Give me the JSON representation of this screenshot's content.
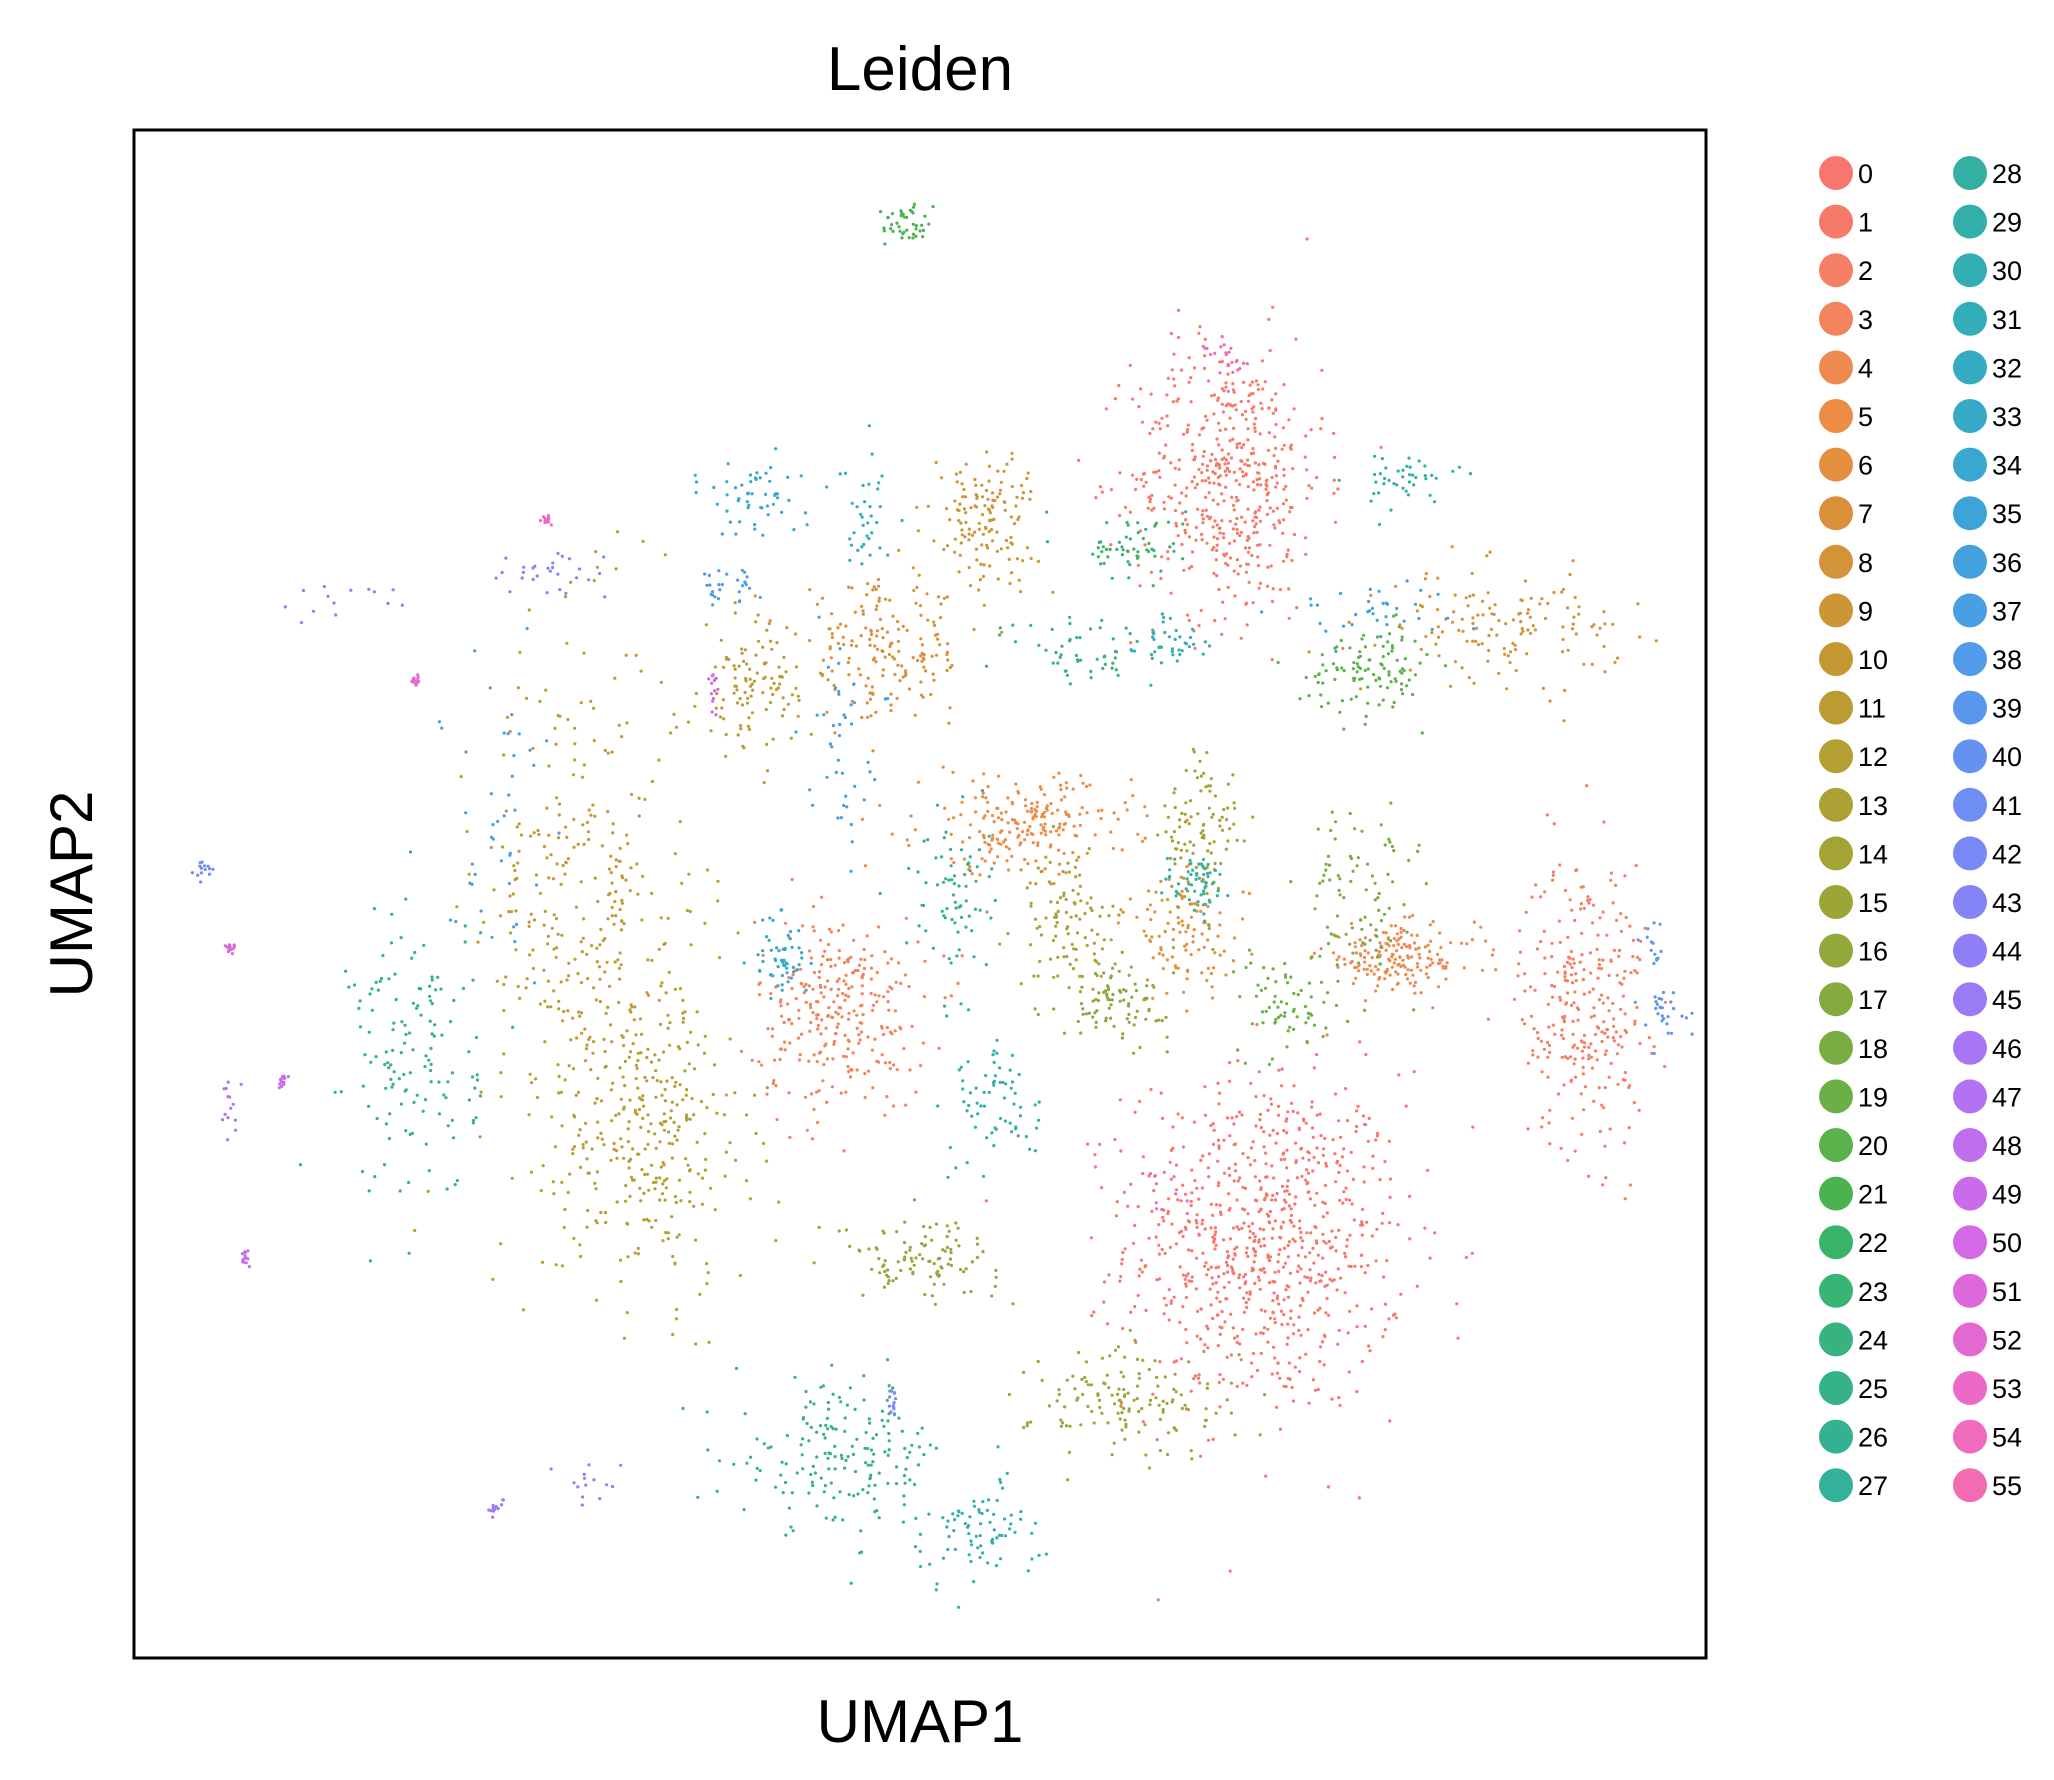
{
  "chart_data": {
    "type": "scatter",
    "title": "Leiden",
    "xlabel": "UMAP1",
    "ylabel": "UMAP2",
    "xticks": [],
    "yticks": [],
    "grid": false,
    "legend_position": "right-outside",
    "legend_columns": 2,
    "categories": [
      "0",
      "1",
      "2",
      "3",
      "4",
      "5",
      "6",
      "7",
      "8",
      "9",
      "10",
      "11",
      "12",
      "13",
      "14",
      "15",
      "16",
      "17",
      "18",
      "19",
      "20",
      "21",
      "22",
      "23",
      "24",
      "25",
      "26",
      "27",
      "28",
      "29",
      "30",
      "31",
      "32",
      "33",
      "34",
      "35",
      "36",
      "37",
      "38",
      "39",
      "40",
      "41",
      "42",
      "43",
      "44",
      "45",
      "46",
      "47",
      "48",
      "49",
      "50",
      "51",
      "52",
      "53",
      "54",
      "55"
    ],
    "colors": [
      "#f8766d",
      "#f67a6a",
      "#f47f63",
      "#f2835c",
      "#ee8950",
      "#ec8c45",
      "#e38f3e",
      "#da903b",
      "#d39338",
      "#cc9636",
      "#c49934",
      "#bb9c33",
      "#b49f33",
      "#aca134",
      "#a4a335",
      "#9ba637",
      "#91a83a",
      "#86aa3e",
      "#79ad43",
      "#6bb047",
      "#5bb24a",
      "#4ab34f",
      "#39b56a",
      "#38b475",
      "#37b37f",
      "#35b288",
      "#34b191",
      "#33b19a",
      "#33b0a2",
      "#33afaa",
      "#33aeb2",
      "#34adba",
      "#35abc1",
      "#36a9c9",
      "#39a7d0",
      "#3da4d7",
      "#43a1de",
      "#4a9ee4",
      "#529aea",
      "#5a96ee",
      "#6492f2",
      "#6e8ef4",
      "#7889f6",
      "#8484f7",
      "#8f7ff7",
      "#9b7af6",
      "#a776f5",
      "#b372f3",
      "#be6eef",
      "#c96bea",
      "#d369e4",
      "#dc68dc",
      "#e468d2",
      "#eb69c8",
      "#f06bbd",
      "#f36cb1"
    ],
    "xlim": [
      -10.3,
      19.3
    ],
    "ylim": [
      -11.3,
      17.3
    ],
    "clusters": [
      {
        "label": "0",
        "center": [
          11.0,
          -3.5
        ],
        "spread": [
          2.6,
          3.2
        ],
        "weight": 0.11
      },
      {
        "label": "1",
        "center": [
          10.3,
          10.8
        ],
        "spread": [
          1.8,
          2.6
        ],
        "weight": 0.07
      },
      {
        "label": "2",
        "center": [
          17.0,
          1.0
        ],
        "spread": [
          1.2,
          2.8
        ],
        "weight": 0.04
      },
      {
        "label": "3",
        "center": [
          3.0,
          0.8
        ],
        "spread": [
          1.6,
          1.8
        ],
        "weight": 0.04
      },
      {
        "label": "4",
        "center": [
          13.5,
          1.8
        ],
        "spread": [
          1.5,
          0.6
        ],
        "weight": 0.025
      },
      {
        "label": "5",
        "center": [
          6.5,
          4.3
        ],
        "spread": [
          2.0,
          0.9
        ],
        "weight": 0.03
      },
      {
        "label": "6",
        "center": [
          9.5,
          2.2
        ],
        "spread": [
          1.2,
          1.2
        ],
        "weight": 0.015
      },
      {
        "label": "7",
        "center": [
          3.8,
          7.5
        ],
        "spread": [
          1.6,
          1.3
        ],
        "weight": 0.025
      },
      {
        "label": "8",
        "center": [
          15.5,
          8.0
        ],
        "spread": [
          2.2,
          1.0
        ],
        "weight": 0.02
      },
      {
        "label": "9",
        "center": [
          5.7,
          10.0
        ],
        "spread": [
          1.0,
          1.3
        ],
        "weight": 0.02
      },
      {
        "label": "10",
        "center": [
          -1.8,
          2.5
        ],
        "spread": [
          2.0,
          5.5
        ],
        "weight": 0.05
      },
      {
        "label": "11",
        "center": [
          1.3,
          6.8
        ],
        "spread": [
          0.9,
          1.2
        ],
        "weight": 0.015
      },
      {
        "label": "12",
        "center": [
          -0.5,
          -1.5
        ],
        "spread": [
          1.8,
          3.0
        ],
        "weight": 0.04
      },
      {
        "label": "13",
        "center": [
          7.3,
          2.5
        ],
        "spread": [
          1.0,
          1.3
        ],
        "weight": 0.015
      },
      {
        "label": "14",
        "center": [
          9.8,
          4.0
        ],
        "spread": [
          0.8,
          1.8
        ],
        "weight": 0.015
      },
      {
        "label": "15",
        "center": [
          8.5,
          -6.5
        ],
        "spread": [
          1.9,
          1.1
        ],
        "weight": 0.02
      },
      {
        "label": "16",
        "center": [
          4.5,
          -3.8
        ],
        "spread": [
          1.5,
          0.7
        ],
        "weight": 0.015
      },
      {
        "label": "17",
        "center": [
          8.2,
          1.0
        ],
        "spread": [
          1.0,
          0.7
        ],
        "weight": 0.012
      },
      {
        "label": "18",
        "center": [
          12.8,
          3.0
        ],
        "spread": [
          1.0,
          1.6
        ],
        "weight": 0.012
      },
      {
        "label": "19",
        "center": [
          11.5,
          1.0
        ],
        "spread": [
          1.0,
          1.0
        ],
        "weight": 0.01
      },
      {
        "label": "20",
        "center": [
          13.0,
          7.2
        ],
        "spread": [
          1.2,
          0.8
        ],
        "weight": 0.015
      },
      {
        "label": "21",
        "center": [
          4.2,
          15.5
        ],
        "spread": [
          0.4,
          0.4
        ],
        "weight": 0.006
      },
      {
        "label": "22",
        "center": [
          8.5,
          9.5
        ],
        "spread": [
          1.0,
          0.6
        ],
        "weight": 0.008
      },
      {
        "label": "23",
        "center": [
          7.8,
          7.5
        ],
        "spread": [
          1.5,
          0.9
        ],
        "weight": 0.008
      },
      {
        "label": "24",
        "center": [
          3.0,
          -7.5
        ],
        "spread": [
          2.0,
          1.4
        ],
        "weight": 0.025
      },
      {
        "label": "25",
        "center": [
          -5.0,
          0.0
        ],
        "spread": [
          1.2,
          2.8
        ],
        "weight": 0.02
      },
      {
        "label": "26",
        "center": [
          5.0,
          3.0
        ],
        "spread": [
          0.8,
          1.5
        ],
        "weight": 0.01
      },
      {
        "label": "27",
        "center": [
          9.7,
          3.2
        ],
        "spread": [
          0.6,
          0.6
        ],
        "weight": 0.008
      },
      {
        "label": "28",
        "center": [
          13.5,
          10.8
        ],
        "spread": [
          1.0,
          0.5
        ],
        "weight": 0.006
      },
      {
        "label": "29",
        "center": [
          6.0,
          -0.8
        ],
        "spread": [
          0.8,
          1.5
        ],
        "weight": 0.01
      },
      {
        "label": "30",
        "center": [
          5.5,
          -9.0
        ],
        "spread": [
          1.3,
          1.0
        ],
        "weight": 0.012
      },
      {
        "label": "31",
        "center": [
          9.2,
          7.8
        ],
        "spread": [
          0.8,
          0.4
        ],
        "weight": 0.005
      },
      {
        "label": "32",
        "center": [
          3.5,
          10.0
        ],
        "spread": [
          0.5,
          1.2
        ],
        "weight": 0.005
      },
      {
        "label": "33",
        "center": [
          1.9,
          1.8
        ],
        "spread": [
          0.5,
          0.8
        ],
        "weight": 0.008
      },
      {
        "label": "34",
        "center": [
          1.5,
          10.5
        ],
        "spread": [
          1.0,
          0.8
        ],
        "weight": 0.008
      },
      {
        "label": "35",
        "center": [
          13.0,
          8.3
        ],
        "spread": [
          1.8,
          0.5
        ],
        "weight": 0.005
      },
      {
        "label": "36",
        "center": [
          3.0,
          6.0
        ],
        "spread": [
          0.6,
          1.8
        ],
        "weight": 0.006
      },
      {
        "label": "37",
        "center": [
          -3.5,
          4.5
        ],
        "spread": [
          1.0,
          3.0
        ],
        "weight": 0.006
      },
      {
        "label": "38",
        "center": [
          0.8,
          8.8
        ],
        "spread": [
          0.6,
          0.4
        ],
        "weight": 0.004
      },
      {
        "label": "39",
        "center": [
          18.5,
          0.8
        ],
        "spread": [
          0.5,
          0.5
        ],
        "weight": 0.004
      },
      {
        "label": "40",
        "center": [
          18.3,
          2.0
        ],
        "spread": [
          0.2,
          0.6
        ],
        "weight": 0.002
      },
      {
        "label": "41",
        "center": [
          -9.0,
          3.5
        ],
        "spread": [
          0.2,
          0.2
        ],
        "weight": 0.001
      },
      {
        "label": "42",
        "center": [
          4.0,
          -6.5
        ],
        "spread": [
          0.1,
          0.3
        ],
        "weight": 0.001
      },
      {
        "label": "43",
        "center": [
          -2.5,
          9.0
        ],
        "spread": [
          1.2,
          0.5
        ],
        "weight": 0.004
      },
      {
        "label": "44",
        "center": [
          -6.5,
          8.5
        ],
        "spread": [
          1.2,
          0.3
        ],
        "weight": 0.002
      },
      {
        "label": "45",
        "center": [
          -1.7,
          -8.0
        ],
        "spread": [
          0.6,
          0.4
        ],
        "weight": 0.001
      },
      {
        "label": "46",
        "center": [
          -3.5,
          -8.5
        ],
        "spread": [
          0.2,
          0.2
        ],
        "weight": 0.001
      },
      {
        "label": "47",
        "center": [
          -8.5,
          -1.0
        ],
        "spread": [
          0.2,
          0.5
        ],
        "weight": 0.001
      },
      {
        "label": "48",
        "center": [
          -8.2,
          -3.8
        ],
        "spread": [
          0.1,
          0.2
        ],
        "weight": 0.001
      },
      {
        "label": "49",
        "center": [
          -7.5,
          -0.5
        ],
        "spread": [
          0.1,
          0.2
        ],
        "weight": 0.001
      },
      {
        "label": "50",
        "center": [
          0.6,
          6.8
        ],
        "spread": [
          0.1,
          0.4
        ],
        "weight": 0.001
      },
      {
        "label": "51",
        "center": [
          -8.5,
          2.0
        ],
        "spread": [
          0.1,
          0.1
        ],
        "weight": 0.001
      },
      {
        "label": "52",
        "center": [
          -5.0,
          7.0
        ],
        "spread": [
          0.1,
          0.1
        ],
        "weight": 0.001
      },
      {
        "label": "53",
        "center": [
          -2.5,
          10.0
        ],
        "spread": [
          0.1,
          0.1
        ],
        "weight": 0.001
      },
      {
        "label": "54",
        "center": [
          10.2,
          13.0
        ],
        "spread": [
          0.6,
          0.6
        ],
        "weight": 0.003
      },
      {
        "label": "55",
        "center": [
          9.0,
          -2.5
        ],
        "spread": [
          1.0,
          1.0
        ],
        "weight": 0.003
      }
    ]
  }
}
